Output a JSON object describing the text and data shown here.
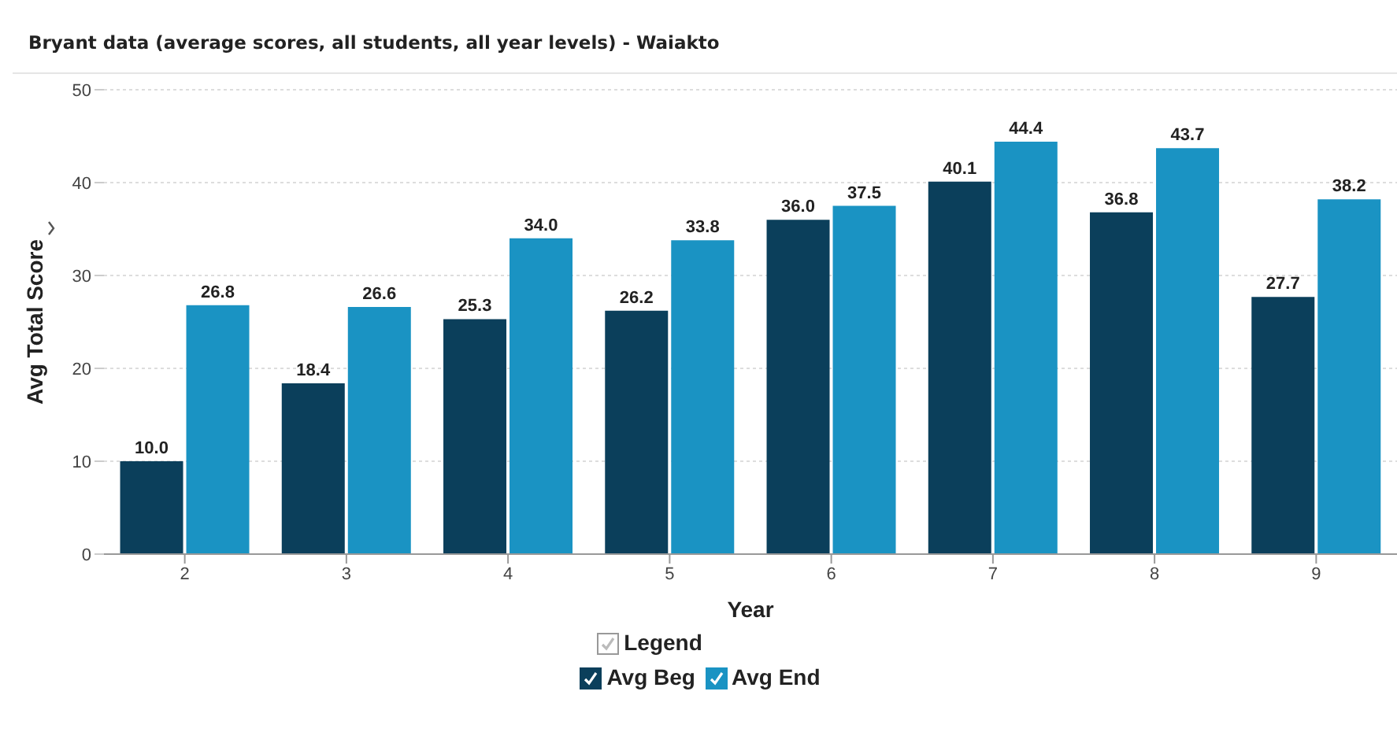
{
  "chart_data": {
    "type": "bar",
    "title": "Bryant data (average scores, all students, all year levels) - Waiakto",
    "xlabel": "Year",
    "ylabel": "Avg Total Score",
    "legend_title": "Legend",
    "categories": [
      "2",
      "3",
      "4",
      "5",
      "6",
      "7",
      "8",
      "9"
    ],
    "series": [
      {
        "name": "Avg Beg",
        "color": "#0b3f5b",
        "values": [
          10.0,
          18.4,
          25.3,
          26.2,
          36.0,
          40.1,
          36.8,
          27.7
        ],
        "value_labels": [
          "10.0",
          "18.4",
          "25.3",
          "26.2",
          "36.0",
          "40.1",
          "36.8",
          "27.7"
        ]
      },
      {
        "name": "Avg End",
        "color": "#1a93c3",
        "values": [
          26.8,
          26.6,
          34.0,
          33.8,
          37.5,
          44.4,
          43.7,
          38.2
        ],
        "value_labels": [
          "26.8",
          "26.6",
          "34.0",
          "33.8",
          "37.5",
          "44.4",
          "43.7",
          "38.2"
        ]
      }
    ],
    "ylim": [
      0,
      50
    ],
    "yticks": [
      0,
      10,
      20,
      30,
      40,
      50
    ],
    "grid": "y",
    "legend": "bottom"
  }
}
